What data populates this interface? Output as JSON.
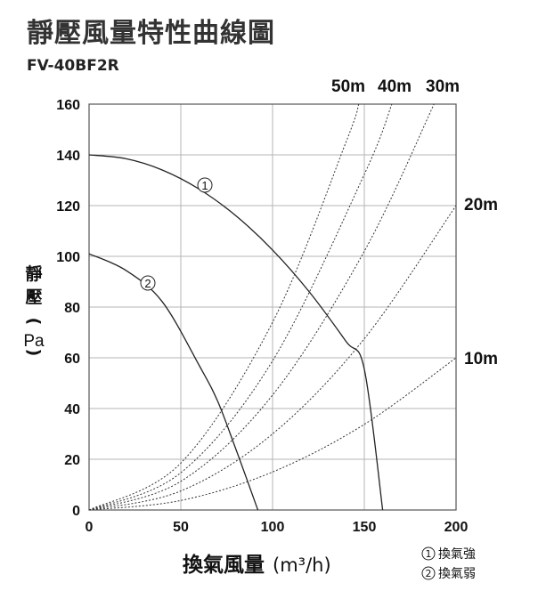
{
  "title": "靜壓風量特性曲線圖",
  "model": "FV-40BF2R",
  "chart_data": {
    "type": "line",
    "xlabel_main": "換氣風量",
    "xlabel_unit": "(m³/h)",
    "ylabel_chars": [
      "靜",
      "壓",
      "（",
      "Pa",
      "）"
    ],
    "xlim": [
      0,
      200
    ],
    "ylim": [
      0,
      160
    ],
    "xticks": [
      0,
      50,
      100,
      150,
      200
    ],
    "yticks": [
      0,
      20,
      40,
      60,
      80,
      100,
      120,
      140,
      160
    ],
    "grid": true,
    "series": [
      {
        "name": "換氣強",
        "marker": "①",
        "style": "solid",
        "x": [
          0,
          20,
          40,
          60,
          80,
          100,
          120,
          140,
          150,
          160
        ],
        "y": [
          140,
          138.5,
          134,
          126.5,
          116,
          102.5,
          86,
          66.5,
          55.5,
          0
        ]
      },
      {
        "name": "換氣弱",
        "marker": "②",
        "style": "solid",
        "x": [
          0,
          20,
          40,
          60,
          70,
          80,
          92
        ],
        "y": [
          101,
          94.5,
          82,
          57,
          43,
          24,
          0
        ]
      }
    ],
    "duct_curves": [
      {
        "label": "10m",
        "x": [
          0,
          50,
          100,
          150,
          200
        ],
        "y": [
          0,
          3.75,
          15,
          33.75,
          60
        ]
      },
      {
        "label": "20m",
        "x": [
          0,
          50,
          100,
          150,
          200
        ],
        "y": [
          0,
          7.5,
          30,
          67.5,
          120
        ]
      },
      {
        "label": "30m",
        "x": [
          0,
          50,
          100,
          150,
          188
        ],
        "y": [
          0,
          11.3,
          45.3,
          102,
          160
        ]
      },
      {
        "label": "40m",
        "x": [
          0,
          50,
          100,
          150,
          165
        ],
        "y": [
          0,
          14.7,
          58.8,
          132.3,
          160
        ]
      },
      {
        "label": "50m",
        "x": [
          0,
          50,
          100,
          140,
          147
        ],
        "y": [
          0,
          18.5,
          74,
          145,
          160
        ]
      }
    ],
    "legend": [
      {
        "marker": "①",
        "text": "換氣強"
      },
      {
        "marker": "②",
        "text": "換氣弱"
      }
    ]
  }
}
